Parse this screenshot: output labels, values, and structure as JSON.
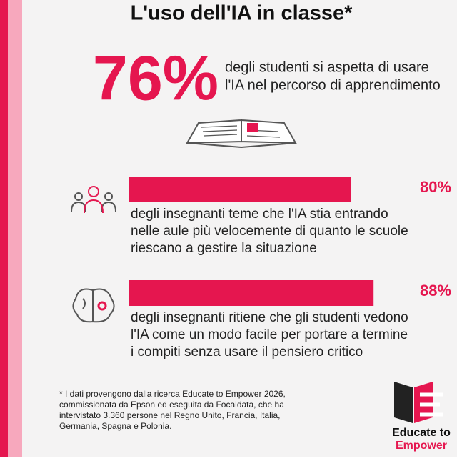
{
  "title": "L'uso dell'IA in classe*",
  "hero": {
    "figure": "76%",
    "lines": [
      "degli studenti si aspetta di usare",
      "l'IA nel percorso di apprendimento"
    ]
  },
  "bar_scale_max": 100,
  "stats": [
    {
      "value": 80,
      "label": "80%",
      "lines": [
        "degli insegnanti teme che l'IA stia entrando",
        "nelle aule più velocemente di quanto le scuole",
        "riescano a gestire la situazione"
      ]
    },
    {
      "value": 88,
      "label": "88%",
      "lines": [
        "degli insegnanti ritiene che gli studenti vedono",
        "l'IA come un modo facile per portare a termine",
        "i compiti senza usare il pensiero critico"
      ]
    }
  ],
  "footnote": [
    "* I dati provengono dalla ricerca Educate to Empower 2026,",
    "commissionata da Epson ed eseguita da Focaldata, che ha",
    "intervistato 3.360 persone nel Regno Unito, Francia, Italia,",
    "Germania, Spagna e Polonia."
  ],
  "logo": [
    "Educate to",
    "Empower"
  ]
}
